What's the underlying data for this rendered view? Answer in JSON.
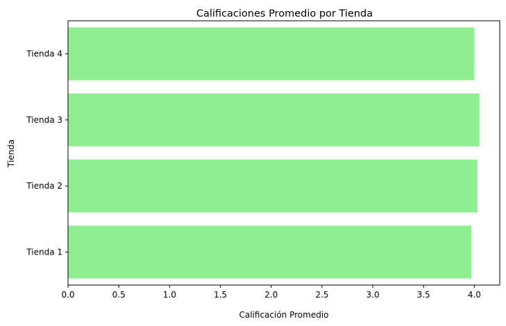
{
  "chart_data": {
    "type": "bar",
    "orientation": "horizontal",
    "title": "Calificaciones Promedio por Tienda",
    "xlabel": "Calificación Promedio",
    "ylabel": "Tienda",
    "categories": [
      "Tienda 1",
      "Tienda 2",
      "Tienda 3",
      "Tienda 4"
    ],
    "values": [
      3.97,
      4.03,
      4.05,
      4.0
    ],
    "xlim": [
      0,
      4.25
    ],
    "xticks": [
      "0.0",
      "0.5",
      "1.0",
      "1.5",
      "2.0",
      "2.5",
      "3.0",
      "3.5",
      "4.0"
    ],
    "bar_color": "#90ee90",
    "grid": false,
    "legend": "none"
  }
}
